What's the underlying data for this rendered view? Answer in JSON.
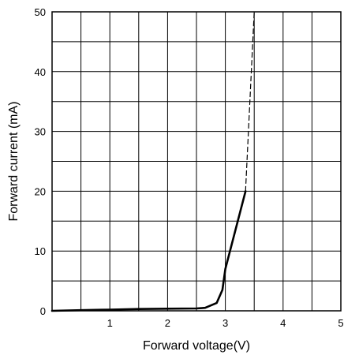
{
  "chart_data": {
    "type": "line",
    "title": "",
    "xlabel": "Forward voltage(V)",
    "ylabel": "Forward current (mA)",
    "xlim": [
      0,
      5
    ],
    "ylim": [
      0,
      50
    ],
    "x_ticks": [
      "1",
      "2",
      "3",
      "4",
      "5"
    ],
    "y_ticks": [
      "0",
      "10",
      "20",
      "30",
      "40",
      "50"
    ],
    "grid": true,
    "x_grid_step": 0.5,
    "y_grid_step": 5,
    "series": [
      {
        "style": "solid",
        "x": [
          0,
          0.5,
          1.0,
          1.5,
          2.0,
          2.5,
          2.65,
          2.85,
          2.95,
          3.0,
          3.35
        ],
        "y": [
          0,
          0.1,
          0.2,
          0.3,
          0.35,
          0.4,
          0.5,
          1.3,
          3.5,
          7.0,
          20.0
        ]
      },
      {
        "style": "dashed",
        "x": [
          3.35,
          3.5
        ],
        "y": [
          20.0,
          50.0
        ]
      }
    ],
    "colors": {
      "line": "#000000",
      "grid": "#000000"
    }
  }
}
